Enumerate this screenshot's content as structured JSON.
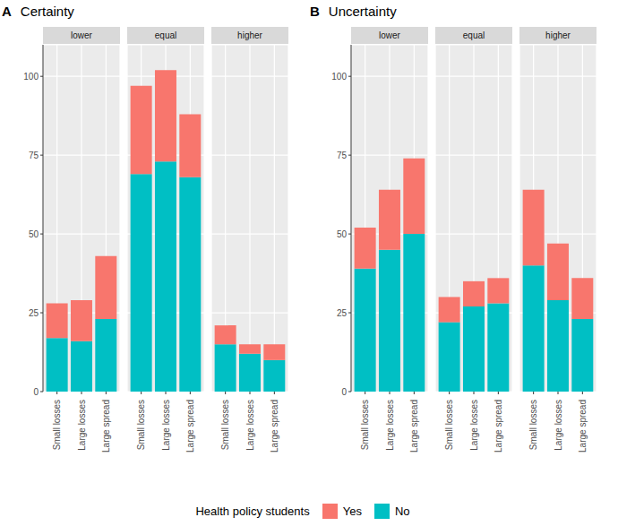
{
  "chart_data": [
    {
      "type": "bar",
      "title": "Certainty",
      "annotations": [
        "A"
      ],
      "stacked": true,
      "grid": true,
      "legend": "bottom",
      "legend_title": "Health policy students",
      "categories": [
        "Small losses",
        "Large losses",
        "Large spread"
      ],
      "ylim": [
        0,
        110
      ],
      "yticks": [
        0,
        25,
        50,
        75,
        100
      ],
      "facets": [
        {
          "title": "lower",
          "series": [
            {
              "name": "Yes",
              "color": "#F8766D",
              "values": [
                11,
                13,
                20
              ]
            },
            {
              "name": "No",
              "color": "#00BFC4",
              "values": [
                17,
                16,
                23
              ]
            }
          ]
        },
        {
          "title": "equal",
          "series": [
            {
              "name": "Yes",
              "color": "#F8766D",
              "values": [
                28,
                29,
                20
              ]
            },
            {
              "name": "No",
              "color": "#00BFC4",
              "values": [
                69,
                73,
                68
              ]
            }
          ]
        },
        {
          "title": "higher",
          "series": [
            {
              "name": "Yes",
              "color": "#F8766D",
              "values": [
                6,
                3,
                5
              ]
            },
            {
              "name": "No",
              "color": "#00BFC4",
              "values": [
                15,
                12,
                10
              ]
            }
          ]
        }
      ]
    },
    {
      "type": "bar",
      "title": "Uncertainty",
      "annotations": [
        "B"
      ],
      "stacked": true,
      "grid": true,
      "categories": [
        "Small losses",
        "Large losses",
        "Large spread"
      ],
      "ylim": [
        0,
        110
      ],
      "yticks": [
        0,
        25,
        50,
        75,
        100
      ],
      "facets": [
        {
          "title": "lower",
          "series": [
            {
              "name": "Yes",
              "color": "#F8766D",
              "values": [
                13,
                19,
                24
              ]
            },
            {
              "name": "No",
              "color": "#00BFC4",
              "values": [
                39,
                45,
                50
              ]
            }
          ]
        },
        {
          "title": "equal",
          "series": [
            {
              "name": "Yes",
              "color": "#F8766D",
              "values": [
                8,
                8,
                8
              ]
            },
            {
              "name": "No",
              "color": "#00BFC4",
              "values": [
                22,
                27,
                28
              ]
            }
          ]
        },
        {
          "title": "higher",
          "series": [
            {
              "name": "Yes",
              "color": "#F8766D",
              "values": [
                24,
                18,
                13
              ]
            },
            {
              "name": "No",
              "color": "#00BFC4",
              "values": [
                40,
                29,
                23
              ]
            }
          ]
        }
      ]
    }
  ]
}
